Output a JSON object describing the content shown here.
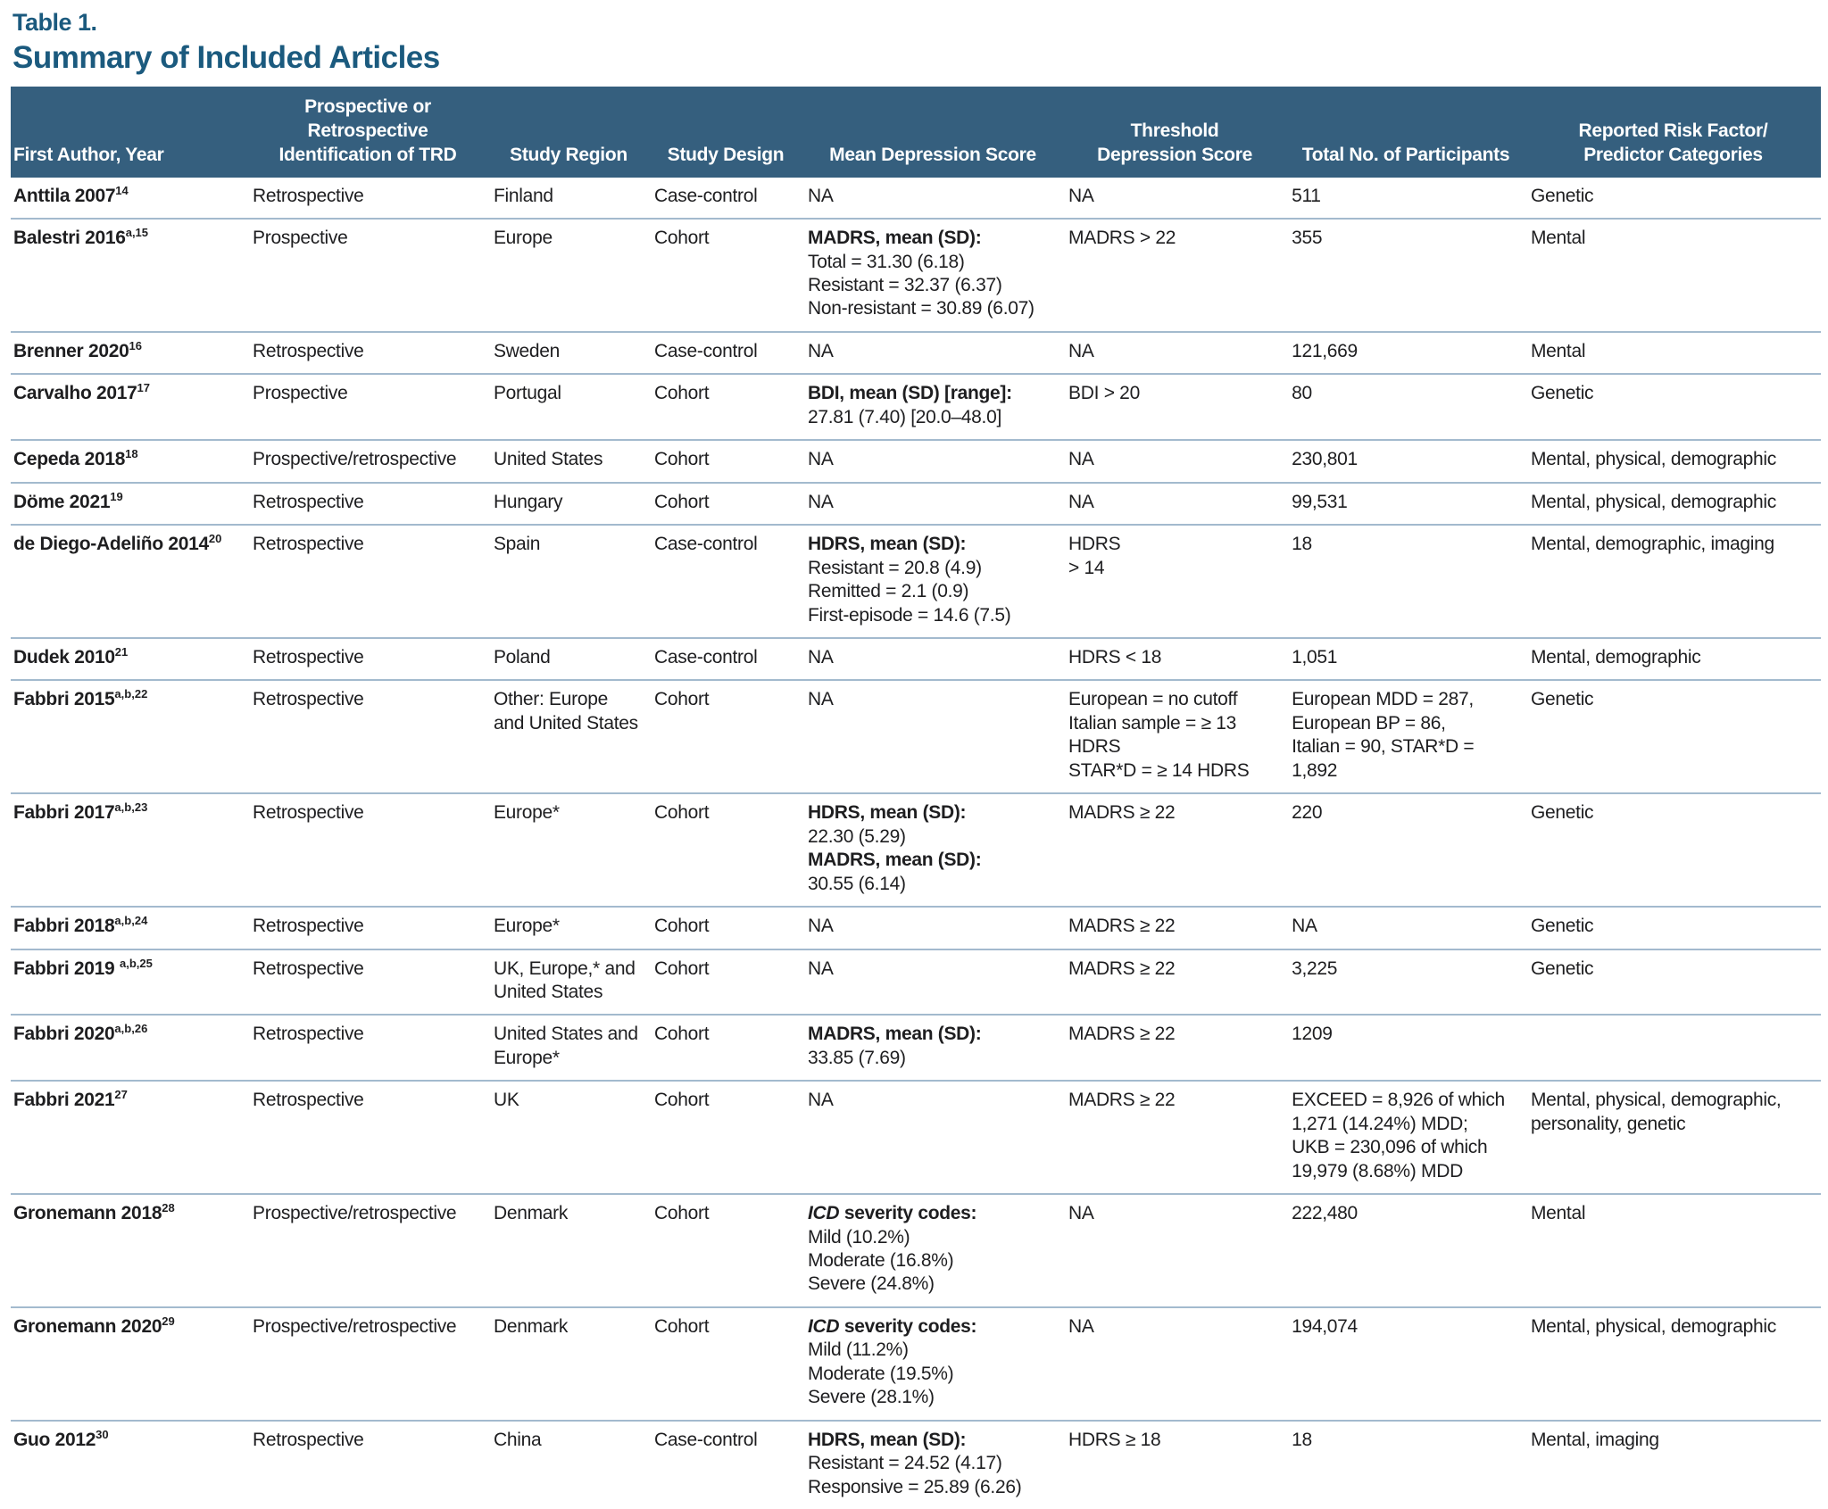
{
  "page": {
    "table_label": "Table 1.",
    "title": "Summary of Included Articles"
  },
  "colors": {
    "header_bg": "#355F7E",
    "title_color": "#1B5A7E",
    "row_line": "#A3BACE"
  },
  "table": {
    "columns": [
      {
        "id": "author",
        "lines": [
          "First Author, Year"
        ]
      },
      {
        "id": "trd",
        "lines": [
          "Prospective or Retrospective",
          "Identification of TRD"
        ]
      },
      {
        "id": "region",
        "lines": [
          "Study Region"
        ]
      },
      {
        "id": "design",
        "lines": [
          "Study Design"
        ]
      },
      {
        "id": "mean_score",
        "lines": [
          "Mean Depression Score"
        ]
      },
      {
        "id": "threshold",
        "lines": [
          "Threshold",
          "Depression Score"
        ]
      },
      {
        "id": "participants",
        "lines": [
          "Total No. of Participants"
        ]
      },
      {
        "id": "risk",
        "lines": [
          "Reported Risk Factor/",
          "Predictor Categories"
        ]
      }
    ],
    "rows": [
      {
        "author": {
          "text": "Anttila 2007",
          "sup": "14"
        },
        "trd": "Retrospective",
        "region": "Finland",
        "design": "Case-control",
        "mean_score": [
          {
            "t": "NA"
          }
        ],
        "threshold": [
          "NA"
        ],
        "participants": [
          "511"
        ],
        "risk": "Genetic"
      },
      {
        "author": {
          "text": "Balestri 2016",
          "sup": "a,15"
        },
        "trd": "Prospective",
        "region": "Europe",
        "design": "Cohort",
        "mean_score": [
          {
            "b": true,
            "t": "MADRS, mean (SD):"
          },
          {
            "t": "Total = 31.30 (6.18)"
          },
          {
            "t": "Resistant = 32.37 (6.37)"
          },
          {
            "t": "Non-resistant = 30.89 (6.07)"
          }
        ],
        "threshold": [
          "MADRS > 22"
        ],
        "participants": [
          "355"
        ],
        "risk": "Mental"
      },
      {
        "author": {
          "text": "Brenner 2020",
          "sup": "16"
        },
        "trd": "Retrospective",
        "region": "Sweden",
        "design": "Case-control",
        "mean_score": [
          {
            "t": "NA"
          }
        ],
        "threshold": [
          "NA"
        ],
        "participants": [
          "121,669"
        ],
        "risk": "Mental"
      },
      {
        "author": {
          "text": "Carvalho 2017",
          "sup": "17"
        },
        "trd": "Prospective",
        "region": "Portugal",
        "design": "Cohort",
        "mean_score": [
          {
            "b": true,
            "t": "BDI, mean (SD) [range]:"
          },
          {
            "t": "27.81 (7.40) [20.0–48.0]"
          }
        ],
        "threshold": [
          "BDI > 20"
        ],
        "participants": [
          "80"
        ],
        "risk": "Genetic"
      },
      {
        "author": {
          "text": "Cepeda 2018",
          "sup": "18"
        },
        "trd": "Prospective/retrospective",
        "region": "United States",
        "design": "Cohort",
        "mean_score": [
          {
            "t": "NA"
          }
        ],
        "threshold": [
          "NA"
        ],
        "participants": [
          "230,801"
        ],
        "risk": "Mental, physical, demographic"
      },
      {
        "author": {
          "text": "Döme 2021",
          "sup": "19"
        },
        "trd": "Retrospective",
        "region": "Hungary",
        "design": "Cohort",
        "mean_score": [
          {
            "t": "NA"
          }
        ],
        "threshold": [
          "NA"
        ],
        "participants": [
          "99,531"
        ],
        "risk": "Mental, physical, demographic"
      },
      {
        "author": {
          "text": "de Diego-Adeliño 2014",
          "sup": "20"
        },
        "trd": "Retrospective",
        "region": "Spain",
        "design": "Case-control",
        "mean_score": [
          {
            "b": true,
            "t": "HDRS, mean (SD):"
          },
          {
            "t": "Resistant = 20.8 (4.9)"
          },
          {
            "t": "Remitted = 2.1 (0.9)"
          },
          {
            "t": "First-episode = 14.6 (7.5)"
          }
        ],
        "threshold": [
          "HDRS",
          "> 14"
        ],
        "participants": [
          "18"
        ],
        "risk": "Mental, demographic, imaging"
      },
      {
        "author": {
          "text": "Dudek 2010",
          "sup": "21"
        },
        "trd": "Retrospective",
        "region": "Poland",
        "design": "Case-control",
        "mean_score": [
          {
            "t": "NA"
          }
        ],
        "threshold": [
          "HDRS < 18"
        ],
        "participants": [
          "1,051"
        ],
        "risk": "Mental, demographic"
      },
      {
        "author": {
          "text": "Fabbri 2015",
          "sup": "a,b,22"
        },
        "trd": "Retrospective",
        "region": "Other: Europe and United States",
        "design": "Cohort",
        "mean_score": [
          {
            "t": "NA"
          }
        ],
        "threshold": [
          "European = no cutoff",
          "Italian sample = ≥ 13 HDRS",
          "STAR*D = ≥ 14 HDRS"
        ],
        "participants": [
          "European MDD = 287,",
          "European BP = 86,",
          "Italian = 90,  STAR*D = 1,892"
        ],
        "risk": "Genetic"
      },
      {
        "author": {
          "text": "Fabbri 2017",
          "sup": "a,b,23"
        },
        "trd": "Retrospective",
        "region": "Europe*",
        "design": "Cohort",
        "mean_score": [
          {
            "b": true,
            "t": "HDRS, mean (SD):"
          },
          {
            "t": "22.30 (5.29)"
          },
          {
            "b": true,
            "t": "MADRS, mean (SD):"
          },
          {
            "t": "30.55 (6.14)"
          }
        ],
        "threshold": [
          "MADRS ≥ 22"
        ],
        "participants": [
          "220"
        ],
        "risk": "Genetic"
      },
      {
        "author": {
          "text": "Fabbri 2018",
          "sup": "a,b,24"
        },
        "trd": "Retrospective",
        "region": "Europe*",
        "design": "Cohort",
        "mean_score": [
          {
            "t": "NA"
          }
        ],
        "threshold": [
          "MADRS ≥ 22"
        ],
        "participants": [
          "NA"
        ],
        "risk": "Genetic"
      },
      {
        "author": {
          "text": "Fabbri 2019 ",
          "sup": "a,b,25"
        },
        "trd": "Retrospective",
        "region": "UK, Europe,* and United States",
        "design": "Cohort",
        "mean_score": [
          {
            "t": "NA"
          }
        ],
        "threshold": [
          "MADRS ≥ 22"
        ],
        "participants": [
          "3,225"
        ],
        "risk": "Genetic"
      },
      {
        "author": {
          "text": "Fabbri 2020",
          "sup": "a,b,26"
        },
        "trd": "Retrospective",
        "region": "United States and Europe*",
        "design": "Cohort",
        "mean_score": [
          {
            "b": true,
            "t": "MADRS, mean (SD):"
          },
          {
            "t": "33.85 (7.69)"
          }
        ],
        "threshold": [
          "MADRS ≥ 22"
        ],
        "participants": [
          "1209"
        ],
        "risk": ""
      },
      {
        "author": {
          "text": "Fabbri 2021",
          "sup": "27"
        },
        "trd": "Retrospective",
        "region": "UK",
        "design": "Cohort",
        "mean_score": [
          {
            "t": "NA"
          }
        ],
        "threshold": [
          "MADRS ≥ 22"
        ],
        "participants": [
          "EXCEED = 8,926 of which",
          "1,271 (14.24%) MDD;",
          "UKB = 230,096 of which",
          "19,979 (8.68%) MDD"
        ],
        "risk": "Mental, physical, demographic, personality, genetic"
      },
      {
        "author": {
          "text": "Gronemann 2018",
          "sup": "28"
        },
        "trd": "Prospective/retrospective",
        "region": "Denmark",
        "design": "Cohort",
        "mean_score": [
          {
            "b": true,
            "it": "ICD",
            "t": " severity codes:"
          },
          {
            "t": "Mild (10.2%)"
          },
          {
            "t": "Moderate (16.8%)"
          },
          {
            "t": "Severe (24.8%)"
          }
        ],
        "threshold": [
          "NA"
        ],
        "participants": [
          "222,480"
        ],
        "risk": "Mental"
      },
      {
        "author": {
          "text": "Gronemann 2020",
          "sup": "29"
        },
        "trd": "Prospective/retrospective",
        "region": "Denmark",
        "design": "Cohort",
        "mean_score": [
          {
            "b": true,
            "it": "ICD",
            "t": " severity codes:"
          },
          {
            "t": "Mild (11.2%)"
          },
          {
            "t": "Moderate (19.5%)"
          },
          {
            "t": "Severe (28.1%)"
          }
        ],
        "threshold": [
          "NA"
        ],
        "participants": [
          "194,074"
        ],
        "risk": "Mental, physical, demographic"
      },
      {
        "author": {
          "text": "Guo 2012",
          "sup": "30"
        },
        "trd": "Retrospective",
        "region": "China",
        "design": "Case-control",
        "mean_score": [
          {
            "b": true,
            "t": "HDRS, mean (SD):"
          },
          {
            "t": "Resistant = 24.52 (4.17)"
          },
          {
            "t": "Responsive = 25.89 (6.26)"
          }
        ],
        "threshold": [
          "HDRS ≥ 18"
        ],
        "participants": [
          "18"
        ],
        "risk": "Mental, imaging"
      }
    ]
  }
}
